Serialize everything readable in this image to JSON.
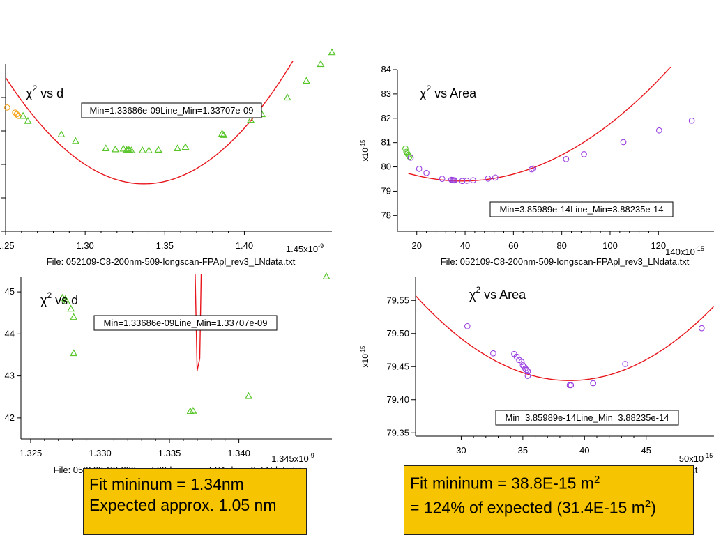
{
  "chart_data": [
    {
      "type": "scatter",
      "title": "χ² vs d",
      "annotation": "Min=1.33686e-09Line_Min=1.33707e-09",
      "xlabel": "File: 052109-C8-200nm-509-longscan-FPApl_rev3_LNdata.txt",
      "x_exponent": "1.45x10⁻⁹",
      "ylabel": "",
      "xlim": [
        1.25,
        1.455
      ],
      "ylim": [
        78,
        83
      ],
      "x_ticks": [
        1.25,
        1.3,
        1.35,
        1.4
      ],
      "x_tick_labels": [
        "1.25",
        "1.30",
        "1.35",
        "1.40"
      ],
      "y_ticks": [
        78,
        79,
        80,
        81,
        82
      ],
      "y_tick_labels": [
        "",
        "",
        "",
        "",
        ""
      ],
      "grid": false,
      "fit": {
        "color": "#e8141b",
        "x_min": 1.337,
        "y_min": 79.42,
        "curvature": 420,
        "x_range": [
          1.25,
          1.46
        ]
      },
      "series": [
        {
          "marker": "circle",
          "color": "#f7a51c",
          "x": [
            1.251,
            1.256,
            1.257,
            1.258
          ],
          "y": [
            81.7,
            81.55,
            81.5,
            81.45
          ]
        },
        {
          "marker": "triangle",
          "color": "#58c62a",
          "x": [
            1.261,
            1.264,
            1.285,
            1.294,
            1.313,
            1.319,
            1.324,
            1.326,
            1.327,
            1.328,
            1.329,
            1.336,
            1.34,
            1.346,
            1.358,
            1.363,
            1.386,
            1.387,
            1.404,
            1.411,
            1.427,
            1.439,
            1.448,
            1.455
          ],
          "y": [
            81.45,
            81.3,
            80.9,
            80.7,
            80.48,
            80.45,
            80.47,
            80.43,
            80.45,
            80.43,
            80.42,
            80.42,
            80.42,
            80.44,
            80.48,
            80.52,
            80.92,
            80.88,
            81.33,
            81.5,
            82.0,
            82.5,
            83.0,
            83.35
          ]
        }
      ]
    },
    {
      "type": "scatter",
      "title": "χ² vs Area",
      "annotation": "Min=3.85989e-14Line_Min=3.88235e-14",
      "xlabel": "File: 052109-C8-200nm-509-longscan-FPApl_rev3_LNdata.txt",
      "x_exponent": "140x10⁻¹⁵",
      "y_exponent": "x10⁻¹⁵",
      "xlim": [
        12,
        143
      ],
      "ylim": [
        77.35,
        84
      ],
      "x_ticks": [
        20,
        40,
        60,
        80,
        100,
        120
      ],
      "x_tick_labels": [
        "20",
        "40",
        "60",
        "80",
        "100",
        "120"
      ],
      "y_ticks": [
        78,
        79,
        80,
        81,
        82,
        83,
        84
      ],
      "y_tick_labels": [
        "78",
        "79",
        "80",
        "81",
        "82",
        "83",
        "84"
      ],
      "grid": false,
      "fit": {
        "color": "#e8141b",
        "x_min": 38.8,
        "y_min": 79.42,
        "curvature": 0.00063,
        "x_range": [
          16.5,
          143
        ]
      },
      "series": [
        {
          "marker": "circle",
          "color": "#58c62a",
          "x": [
            15.3,
            15.7,
            16.1,
            16.5,
            17.0
          ],
          "y": [
            80.75,
            80.62,
            80.55,
            80.5,
            80.42
          ]
        },
        {
          "marker": "circle",
          "color": "#9a3fe0",
          "x": [
            17.5,
            21,
            24,
            30.5,
            34.3,
            34.8,
            35.2,
            35.6,
            38.8,
            40.7,
            43.3,
            49.5,
            52.5,
            67.5,
            68.2,
            81.8,
            89.2,
            105.5,
            120.3,
            133.8
          ],
          "y": [
            80.38,
            79.92,
            79.75,
            79.51,
            79.47,
            79.46,
            79.45,
            79.45,
            79.42,
            79.43,
            79.45,
            79.52,
            79.56,
            79.9,
            79.93,
            80.32,
            80.52,
            81.02,
            81.5,
            81.9
          ]
        }
      ]
    },
    {
      "type": "scatter",
      "title": "χ² vs d",
      "annotation": "Min=1.33686e-09Line_Min=1.33707e-09",
      "xlabel": "File: 052109-C8-200nm-509-longscan-FPApl_rev3_LNdata.txt",
      "x_exponent": "1.345x10⁻⁹",
      "xlim": [
        1.3243,
        1.3467
      ],
      "ylim": [
        79.415,
        79.4535
      ],
      "x_ticks": [
        1.325,
        1.33,
        1.335,
        1.34
      ],
      "x_tick_labels": [
        "1.325",
        "1.330",
        "1.335",
        "1.340"
      ],
      "y_ticks": [
        79.42,
        79.43,
        79.44,
        79.45
      ],
      "y_tick_labels": [
        "42",
        "43",
        "44",
        "45"
      ],
      "grid": false,
      "fit": {
        "color": "#e8141b",
        "x_min": 1.33707,
        "y_min": 79.4284,
        "curvature": 480000,
        "x_range": [
          1.3243,
          1.3467
        ]
      },
      "series": [
        {
          "marker": "triangle",
          "color": "#58c62a",
          "x": [
            1.3273,
            1.3275,
            1.3276,
            1.3279,
            1.3281,
            1.3281,
            1.3365,
            1.3367,
            1.3407,
            1.3463
          ],
          "y": [
            79.4486,
            79.4483,
            79.4477,
            79.446,
            79.444,
            79.4354,
            79.4216,
            79.4217,
            79.4252,
            79.4537
          ]
        }
      ]
    },
    {
      "type": "scatter",
      "title": "χ² vs Area",
      "annotation": "Min=3.85989e-14Line_Min=3.88235e-14",
      "xlabel": "File: 052109-C8-200nm-509-longscan-FPApl_rev3_LNdata.txt",
      "x_exponent": "50x10⁻¹⁵",
      "y_exponent": "x10⁻¹⁵",
      "xlim": [
        26.3,
        50.5
      ],
      "ylim": [
        79.345,
        79.585
      ],
      "x_ticks": [
        30,
        35,
        40,
        45
      ],
      "x_tick_labels": [
        "30",
        "35",
        "40",
        "45"
      ],
      "y_ticks": [
        79.35,
        79.4,
        79.45,
        79.5,
        79.55
      ],
      "y_tick_labels": [
        "79.35",
        "79.40",
        "79.45",
        "79.50",
        "79.55"
      ],
      "grid": false,
      "fit": {
        "color": "#e8141b",
        "x_min": 38.8,
        "y_min": 79.429,
        "curvature": 0.00082,
        "x_range": [
          26.3,
          50.5
        ]
      },
      "series": [
        {
          "marker": "circle",
          "color": "#9a3fe0",
          "x": [
            30.5,
            32.6,
            34.3,
            34.5,
            34.7,
            34.9,
            35.0,
            35.1,
            35.2,
            35.3,
            35.4,
            35.4,
            38.8,
            38.9,
            40.7,
            43.3,
            49.5
          ],
          "y": [
            79.511,
            79.47,
            79.469,
            79.465,
            79.46,
            79.457,
            79.452,
            79.45,
            79.447,
            79.445,
            79.443,
            79.436,
            79.422,
            79.422,
            79.425,
            79.454,
            79.508
          ]
        }
      ]
    }
  ],
  "notes": {
    "left_line1": "Fit mininum = 1.34nm",
    "left_line2": "Expected approx. 1.05 nm",
    "right_line1_pre": "Fit mininum = 38.8E-15 m",
    "right_line1_sup": "2",
    "right_line2_pre": "= 124% of expected (31.4E-15 m",
    "right_line2_sup": "2",
    "right_line2_post": ")"
  }
}
